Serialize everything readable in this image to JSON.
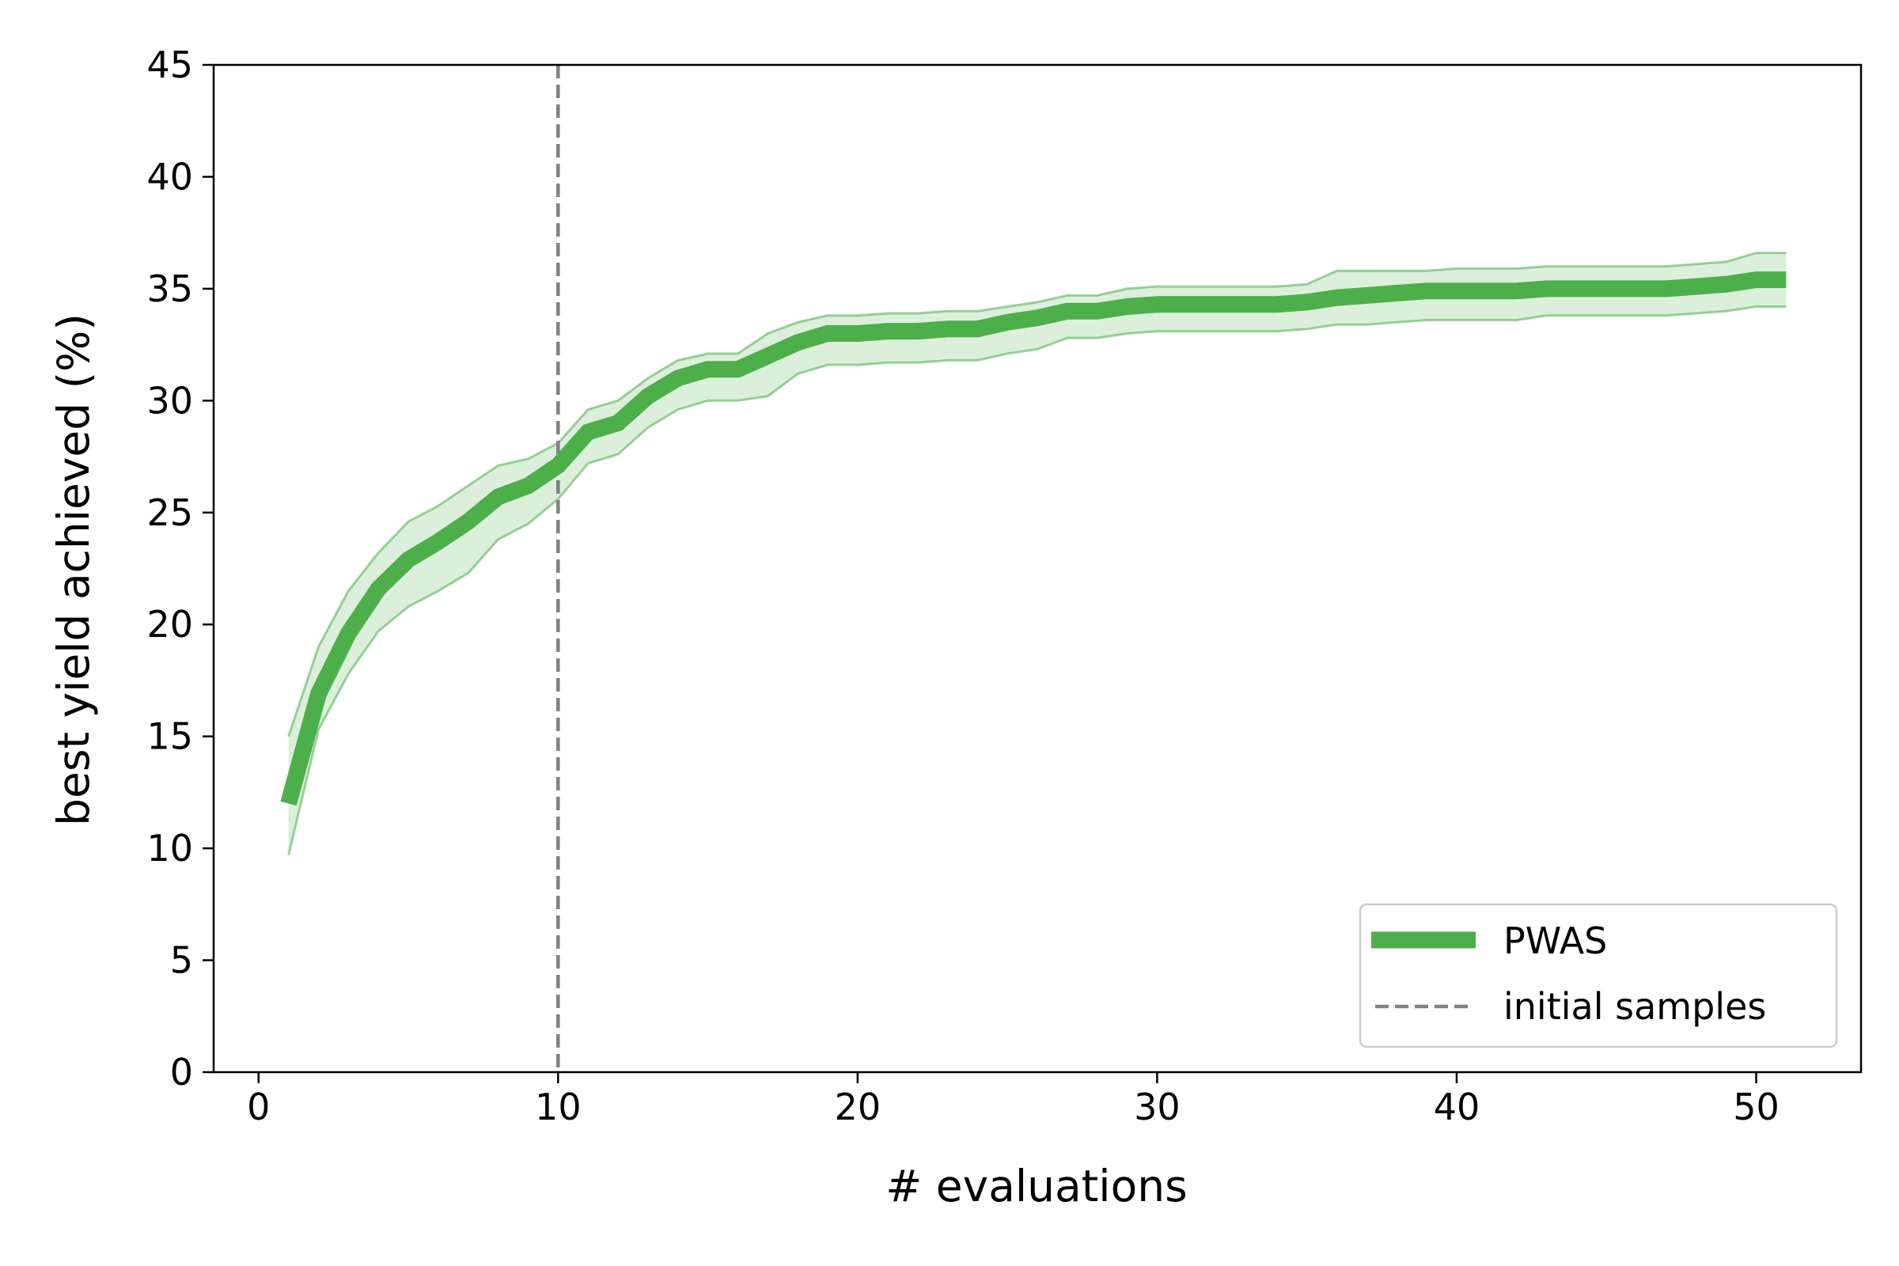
{
  "chart_data": {
    "type": "line",
    "xlabel": "# evaluations",
    "ylabel": "best yield achieved (%)",
    "xlim": [
      -1.5,
      53.5
    ],
    "ylim": [
      0,
      45
    ],
    "x_ticks": [
      0,
      10,
      20,
      30,
      40,
      50
    ],
    "y_ticks": [
      0,
      5,
      10,
      15,
      20,
      25,
      30,
      35,
      40,
      45
    ],
    "grid": false,
    "legend_position": "lower-right",
    "colors": {
      "series": "#4daf4a",
      "band": "#4daf4a",
      "vline": "#808080"
    },
    "x": [
      1,
      2,
      3,
      4,
      5,
      6,
      7,
      8,
      9,
      10,
      11,
      12,
      13,
      14,
      15,
      16,
      17,
      18,
      19,
      20,
      21,
      22,
      23,
      24,
      25,
      26,
      27,
      28,
      29,
      30,
      31,
      32,
      33,
      34,
      35,
      36,
      37,
      38,
      39,
      40,
      41,
      42,
      43,
      44,
      45,
      46,
      47,
      48,
      49,
      50,
      51
    ],
    "series": [
      {
        "name": "PWAS",
        "mean": [
          12.0,
          16.9,
          19.6,
          21.6,
          22.9,
          23.7,
          24.6,
          25.7,
          26.2,
          27.1,
          28.6,
          29.0,
          30.2,
          31.0,
          31.4,
          31.4,
          32.0,
          32.6,
          33.0,
          33.0,
          33.1,
          33.1,
          33.2,
          33.2,
          33.5,
          33.7,
          34.0,
          34.0,
          34.2,
          34.3,
          34.3,
          34.3,
          34.3,
          34.3,
          34.4,
          34.6,
          34.7,
          34.8,
          34.9,
          34.9,
          34.9,
          34.9,
          35.0,
          35.0,
          35.0,
          35.0,
          35.0,
          35.1,
          35.2,
          35.4,
          35.4
        ],
        "upper": [
          15.0,
          19.0,
          21.5,
          23.2,
          24.6,
          25.3,
          26.2,
          27.1,
          27.4,
          28.1,
          29.6,
          30.0,
          31.0,
          31.8,
          32.1,
          32.1,
          33.0,
          33.5,
          33.8,
          33.8,
          33.9,
          33.9,
          34.0,
          34.0,
          34.2,
          34.4,
          34.7,
          34.7,
          35.0,
          35.1,
          35.1,
          35.1,
          35.1,
          35.1,
          35.2,
          35.8,
          35.8,
          35.8,
          35.8,
          35.9,
          35.9,
          35.9,
          36.0,
          36.0,
          36.0,
          36.0,
          36.0,
          36.1,
          36.2,
          36.6,
          36.6
        ],
        "lower": [
          9.7,
          15.3,
          17.8,
          19.7,
          20.8,
          21.5,
          22.3,
          23.8,
          24.5,
          25.6,
          27.2,
          27.6,
          28.8,
          29.6,
          30.0,
          30.0,
          30.2,
          31.2,
          31.6,
          31.6,
          31.7,
          31.7,
          31.8,
          31.8,
          32.1,
          32.3,
          32.8,
          32.8,
          33.0,
          33.1,
          33.1,
          33.1,
          33.1,
          33.1,
          33.2,
          33.4,
          33.4,
          33.5,
          33.6,
          33.6,
          33.6,
          33.6,
          33.8,
          33.8,
          33.8,
          33.8,
          33.8,
          33.9,
          34.0,
          34.2,
          34.2
        ]
      }
    ],
    "vline": {
      "x": 10,
      "name": "initial samples"
    }
  }
}
